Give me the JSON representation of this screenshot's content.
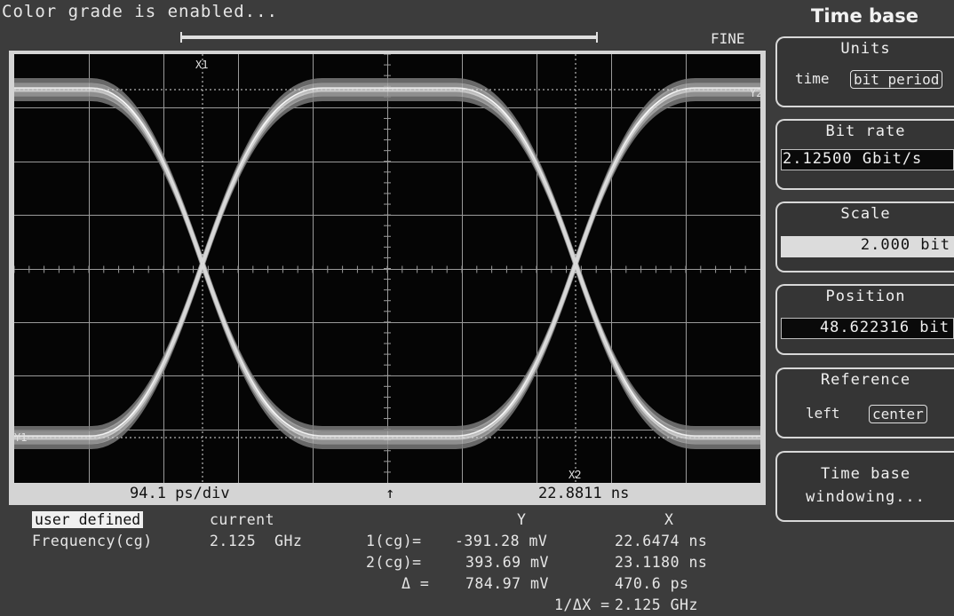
{
  "status_message": "Color grade is enabled...",
  "knob_mode": "FINE",
  "scope": {
    "markers": {
      "x1": "X1",
      "x2": "X2",
      "y1_left": "Y1",
      "y2_right": "Y2"
    },
    "scale_per_div": "94.1 ps/div",
    "trigger_arrow": "↑",
    "time_offset": "22.8811 ns"
  },
  "panel": {
    "title": "Time base",
    "units": {
      "title": "Units",
      "options": [
        "time",
        "bit period"
      ],
      "selected": "bit period"
    },
    "bit_rate": {
      "title": "Bit rate",
      "value": "2.12500 Gbit/s"
    },
    "scale": {
      "title": "Scale",
      "value": "2.000 bit"
    },
    "position": {
      "title": "Position",
      "value": "48.622316 bit"
    },
    "reference": {
      "title": "Reference",
      "options": [
        "left",
        "center"
      ],
      "selected": "center"
    },
    "windowing": {
      "line1": "Time base",
      "line2": "windowing..."
    }
  },
  "measurements": {
    "mode_label": "user defined",
    "current_label": "current",
    "freq_label": "Frequency(cg)",
    "freq_value": "2.125  GHz",
    "col_y": "Y",
    "col_x": "X",
    "rows": [
      {
        "label": "1(cg)=",
        "y": "-391.28 mV",
        "x": "22.6474 ns"
      },
      {
        "label": "2(cg)=",
        "y": "393.69 mV",
        "x": "23.1180 ns"
      },
      {
        "label": "Δ =",
        "y": "784.97 mV",
        "x": "470.6 ps"
      }
    ],
    "inv_dx_label": "1/ΔX =",
    "inv_dx_value": "2.125 GHz"
  }
}
